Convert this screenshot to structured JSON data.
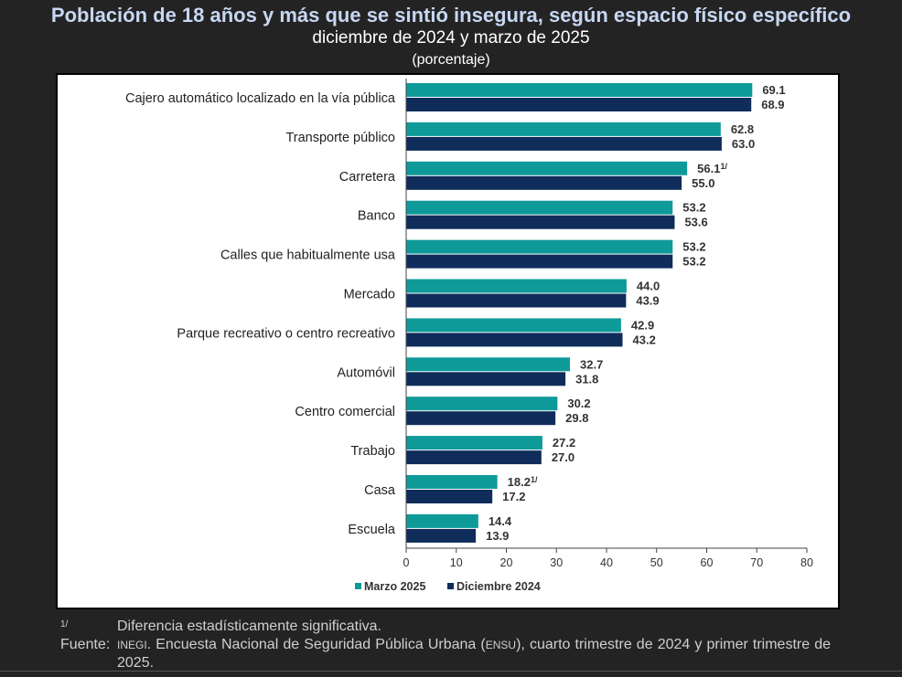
{
  "title": "Población de 18 años y más que se sintió insegura, según espacio físico específico",
  "subtitle": "diciembre de 2024 y marzo de 2025",
  "unit": "(porcentaje)",
  "colors": {
    "series_1": "#0f9a9a",
    "series_2": "#0f2c5a"
  },
  "chart_data": {
    "type": "bar",
    "orientation": "horizontal",
    "categories": [
      "Cajero automático localizado en la vía pública",
      "Transporte público",
      "Carretera",
      "Banco",
      "Calles que habitualmente usa",
      "Mercado",
      "Parque recreativo o centro recreativo",
      "Automóvil",
      "Centro comercial",
      "Trabajo",
      "Casa",
      "Escuela"
    ],
    "series": [
      {
        "name": "Marzo 2025",
        "values": [
          69.1,
          62.8,
          56.1,
          53.2,
          53.2,
          44.0,
          42.9,
          32.7,
          30.2,
          27.2,
          18.2,
          14.4
        ]
      },
      {
        "name": "Diciembre 2024",
        "values": [
          68.9,
          63.0,
          55.0,
          53.6,
          53.2,
          43.9,
          43.2,
          31.8,
          29.8,
          27.0,
          17.2,
          13.9
        ]
      }
    ],
    "value_labels": [
      [
        "69.1",
        "62.8",
        "56.1",
        "53.2",
        "53.2",
        "44.0",
        "42.9",
        "32.7",
        "30.2",
        "27.2",
        "18.2",
        "14.4"
      ],
      [
        "68.9",
        "63.0",
        "55.0",
        "53.6",
        "53.2",
        "43.9",
        "43.2",
        "31.8",
        "29.8",
        "27.0",
        "17.2",
        "13.9"
      ]
    ],
    "significance_marker": "1/",
    "significant_categories": [
      "Carretera",
      "Casa"
    ],
    "xlim": [
      0,
      80
    ],
    "xticks": [
      0,
      10,
      20,
      30,
      40,
      50,
      60,
      70,
      80
    ],
    "xlabel": "",
    "ylabel": "",
    "legend_position": "bottom",
    "grid": false
  },
  "notes": {
    "footnote_key": "1/",
    "footnote_text": "Diferencia estadísticamente significativa.",
    "source_key": "Fuente:",
    "source_org": "INEGI",
    "source_text_1": ". Encuesta Nacional de Seguridad Pública Urbana (",
    "source_acronym": "ENSU",
    "source_text_2": "), cuarto trimestre de 2024 y primer trimestre de 2025."
  }
}
